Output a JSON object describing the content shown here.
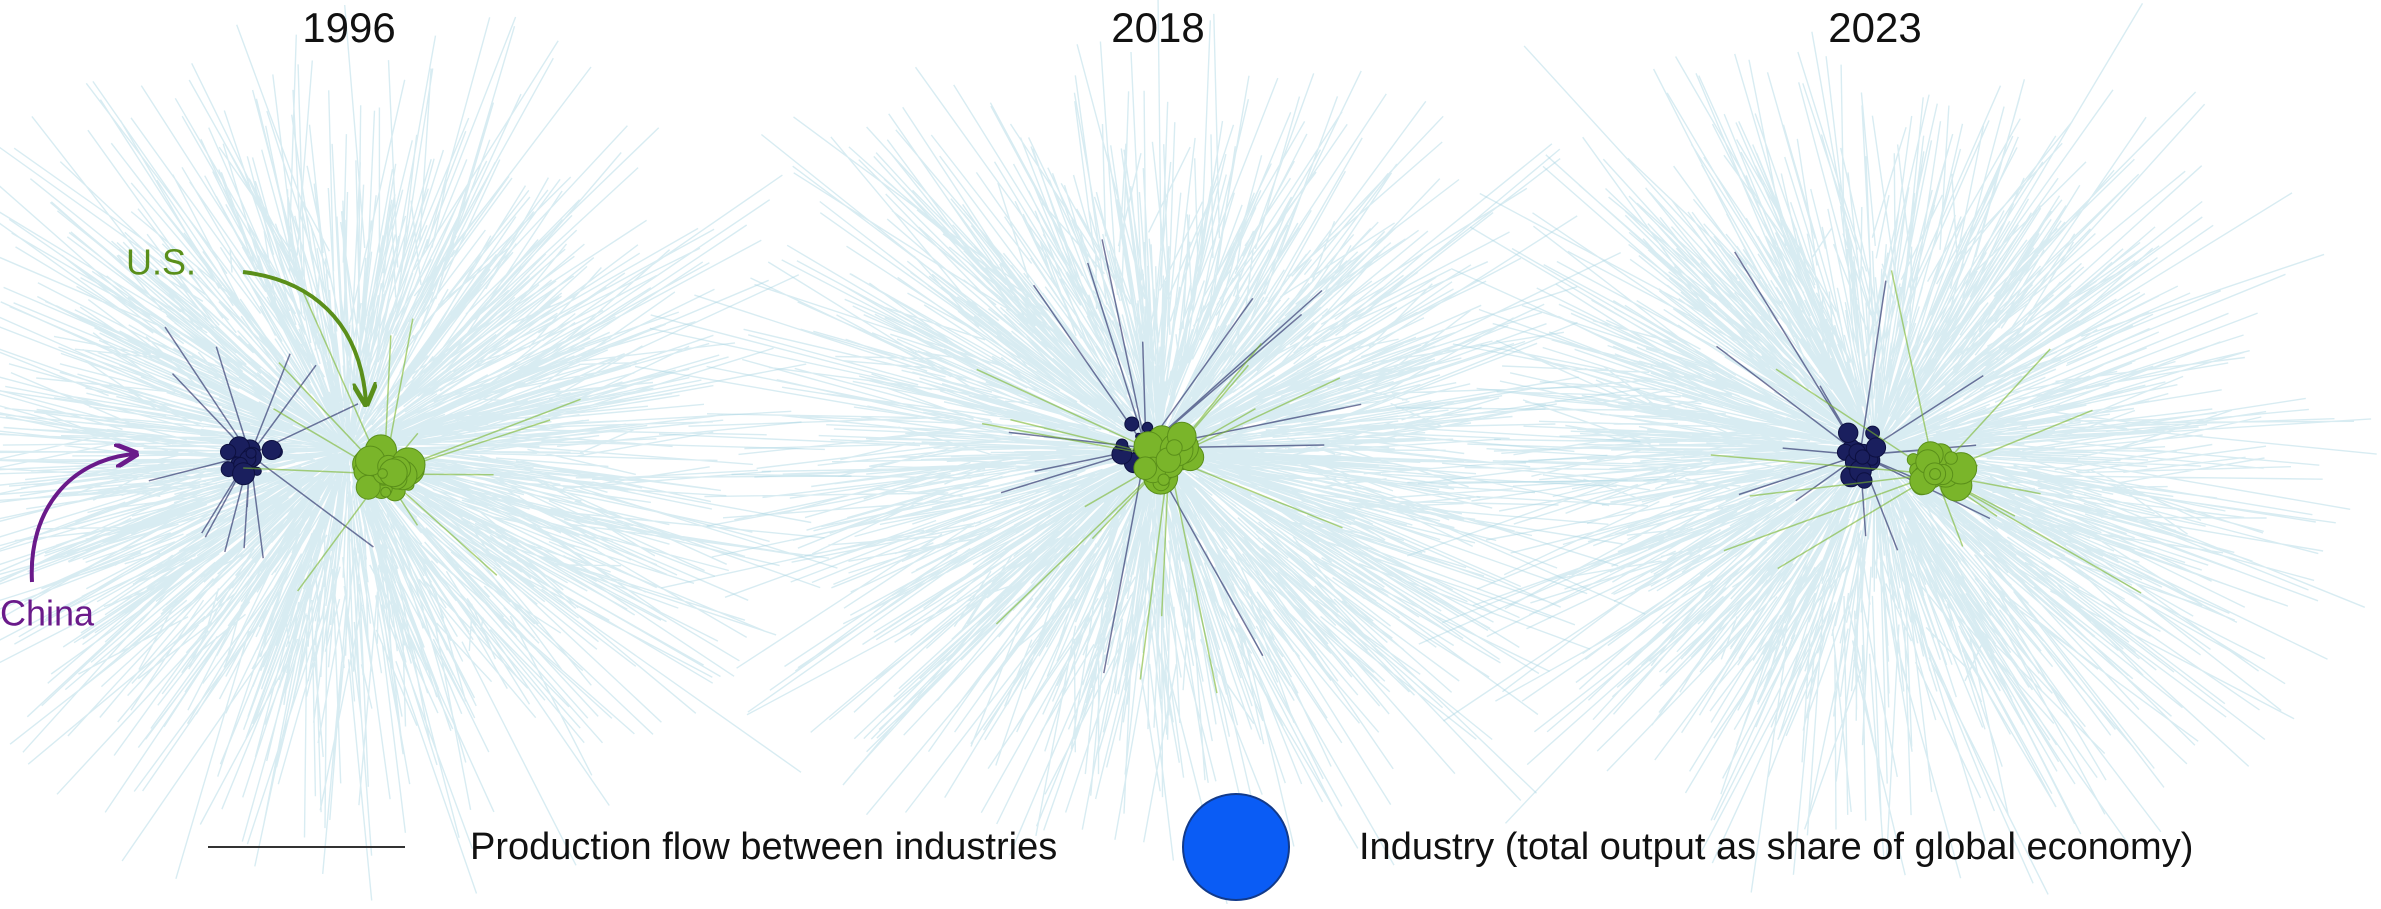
{
  "panels": [
    {
      "title": "1996"
    },
    {
      "title": "2018"
    },
    {
      "title": "2023"
    }
  ],
  "annotations": {
    "us": "U.S.",
    "china": "China"
  },
  "legend": {
    "flow": "Production flow between industries",
    "industry": "Industry (total output as share of global economy)"
  }
}
